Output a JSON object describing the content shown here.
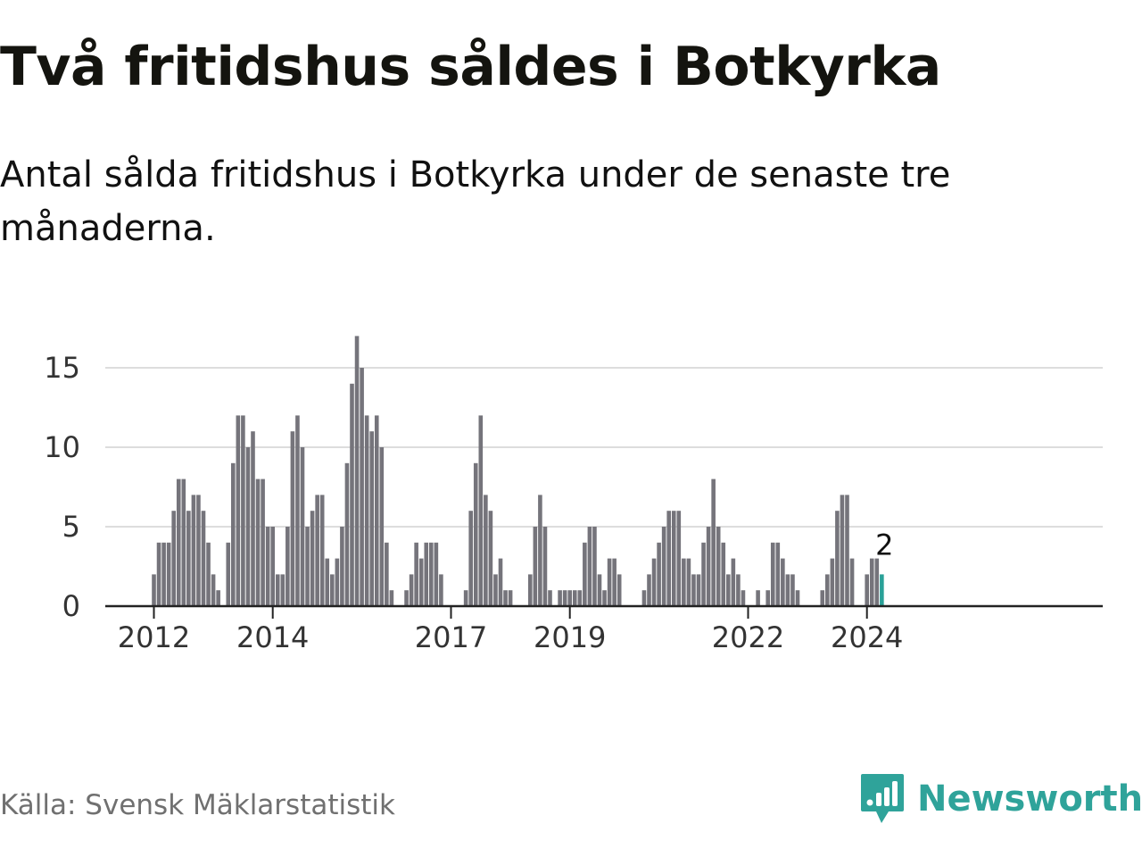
{
  "title": "Två fritidshus såldes i Botkyrka",
  "subtitle": "Antal sålda fritidshus i Botkyrka under de senaste tre månaderna.",
  "source": "Källa: Svensk Mäklarstatistik",
  "brand": {
    "name": "Newsworthy",
    "icon": "newsworthy-logo-icon"
  },
  "colors": {
    "bar": "#75747b",
    "highlight": "#2aa198",
    "grid": "#dddddd",
    "axis": "#222222",
    "brand": "#2fa39a"
  },
  "chart_data": {
    "type": "bar",
    "title": "Två fritidshus såldes i Botkyrka",
    "xlabel": "",
    "ylabel": "",
    "ylim": [
      0,
      17
    ],
    "yticks": [
      0,
      5,
      10,
      15
    ],
    "xticks": [
      "2012",
      "2014",
      "2017",
      "2019",
      "2022",
      "2024"
    ],
    "grid": true,
    "start_month": "2012-01",
    "end_month": "2024-02",
    "highlight_last": true,
    "highlight_label": "2",
    "values": [
      2,
      4,
      4,
      4,
      6,
      8,
      8,
      6,
      7,
      7,
      6,
      4,
      2,
      1,
      0,
      4,
      9,
      12,
      12,
      10,
      11,
      8,
      8,
      5,
      5,
      2,
      2,
      5,
      11,
      12,
      10,
      5,
      6,
      7,
      7,
      3,
      2,
      3,
      5,
      9,
      14,
      17,
      15,
      12,
      11,
      12,
      10,
      4,
      1,
      0,
      0,
      1,
      2,
      4,
      3,
      4,
      4,
      4,
      2,
      0,
      0,
      0,
      0,
      1,
      6,
      9,
      12,
      7,
      6,
      2,
      3,
      1,
      1,
      0,
      0,
      0,
      2,
      5,
      7,
      5,
      1,
      0,
      1,
      1,
      1,
      1,
      1,
      4,
      5,
      5,
      2,
      1,
      3,
      3,
      2,
      0,
      0,
      0,
      0,
      1,
      2,
      3,
      4,
      5,
      6,
      6,
      6,
      3,
      3,
      2,
      2,
      4,
      5,
      8,
      5,
      4,
      2,
      3,
      2,
      1,
      0,
      0,
      1,
      0,
      1,
      4,
      4,
      3,
      2,
      2,
      1,
      0,
      0,
      0,
      0,
      1,
      2,
      3,
      6,
      7,
      7,
      3,
      0,
      0,
      2,
      3,
      3,
      2
    ]
  }
}
